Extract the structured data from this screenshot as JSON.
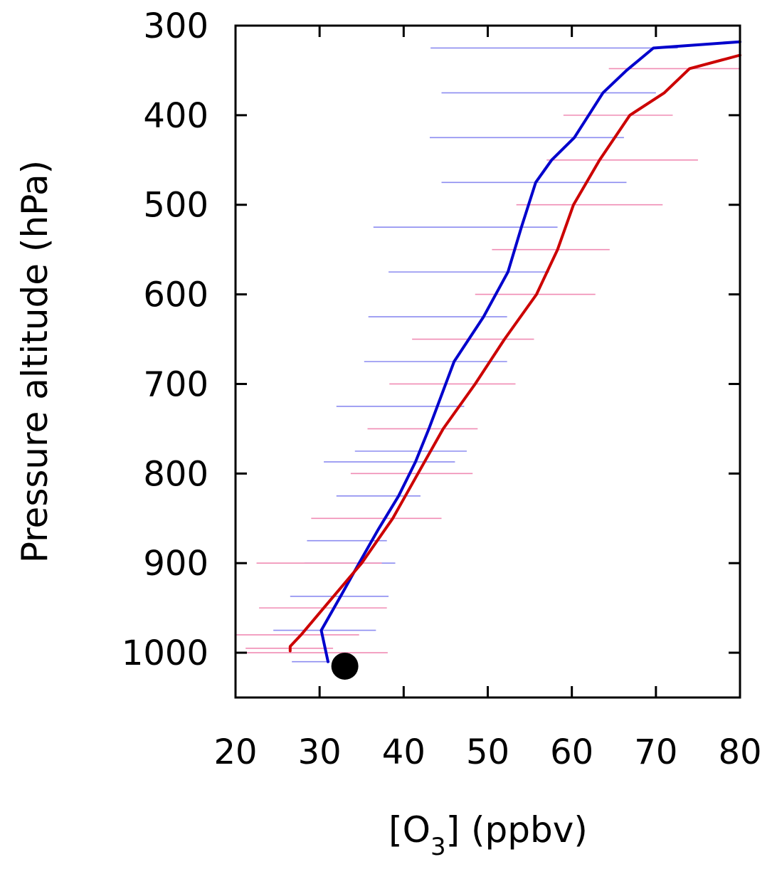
{
  "chart_data": {
    "type": "line",
    "xlabel": "[O3] (ppbv)",
    "xlabel_parts": {
      "pre": "[O",
      "sub": "3",
      "post": "] (ppbv)"
    },
    "ylabel": "Pressure altitude (hPa)",
    "xlim": [
      20,
      80
    ],
    "ylim": [
      1050,
      300
    ],
    "x_ticks": [
      "20",
      "30",
      "40",
      "50",
      "60",
      "70",
      "80"
    ],
    "y_ticks": [
      "300",
      "400",
      "500",
      "600",
      "700",
      "800",
      "900",
      "1000"
    ],
    "y_scale": "linear, inverted",
    "grid": false,
    "legend": "none",
    "series": [
      {
        "color": "#0000cc",
        "points": [
          [
            31,
            1010
          ],
          [
            30.2,
            975
          ],
          [
            32.5,
            937
          ],
          [
            34.7,
            900
          ],
          [
            37,
            862
          ],
          [
            39.4,
            825
          ],
          [
            41.4,
            787
          ],
          [
            43,
            750
          ],
          [
            44,
            725
          ],
          [
            46,
            675
          ],
          [
            49.5,
            625
          ],
          [
            52.4,
            575
          ],
          [
            54,
            525
          ],
          [
            55.7,
            475
          ],
          [
            57.6,
            450
          ],
          [
            60.3,
            425
          ],
          [
            62,
            400
          ],
          [
            63.7,
            375
          ],
          [
            66.5,
            350
          ],
          [
            69.7,
            325
          ],
          [
            80,
            318
          ]
        ],
        "error_bars": [
          [
            26.7,
            1010,
            31.2
          ],
          [
            24.5,
            975,
            36.7
          ],
          [
            26.5,
            937,
            38.2
          ],
          [
            28.2,
            900,
            39
          ],
          [
            28.5,
            875,
            38
          ],
          [
            32,
            825,
            42
          ],
          [
            30.5,
            787,
            46.1
          ],
          [
            34.2,
            775,
            47.5
          ],
          [
            32,
            725,
            47.2
          ],
          [
            35.3,
            675,
            52.3
          ],
          [
            35.8,
            625,
            52.3
          ],
          [
            38.2,
            575,
            57.3
          ],
          [
            36.4,
            525,
            58.3
          ],
          [
            44.5,
            475,
            66.5
          ],
          [
            43.1,
            425,
            66.2
          ],
          [
            44.5,
            375,
            70
          ],
          [
            43.2,
            325,
            72.6
          ]
        ]
      },
      {
        "color": "#cc0000",
        "points": [
          [
            26.5,
            998
          ],
          [
            26.5,
            993
          ],
          [
            27.8,
            980
          ],
          [
            30.5,
            950
          ],
          [
            35,
            900
          ],
          [
            38.7,
            850
          ],
          [
            41.7,
            800
          ],
          [
            44.7,
            750
          ],
          [
            48.5,
            700
          ],
          [
            52,
            650
          ],
          [
            55.8,
            600
          ],
          [
            58.3,
            550
          ],
          [
            60.2,
            500
          ],
          [
            63.3,
            450
          ],
          [
            66.9,
            400
          ],
          [
            71,
            375
          ],
          [
            74,
            348
          ],
          [
            80,
            333
          ]
        ],
        "error_bars": [
          [
            20,
            1000,
            38.1
          ],
          [
            21.2,
            995,
            31.6
          ],
          [
            20,
            980,
            34.7
          ],
          [
            22.8,
            950,
            38
          ],
          [
            22.5,
            900,
            37.4
          ],
          [
            29,
            850,
            44.5
          ],
          [
            33.7,
            800,
            48.2
          ],
          [
            35.7,
            750,
            48.8
          ],
          [
            38.3,
            700,
            53.3
          ],
          [
            41,
            650,
            55.5
          ],
          [
            48.5,
            600,
            62.8
          ],
          [
            50.5,
            550,
            64.5
          ],
          [
            53.4,
            500,
            70.8
          ],
          [
            57,
            450,
            75
          ],
          [
            59,
            400,
            72
          ],
          [
            64.4,
            348,
            81.5
          ]
        ]
      }
    ],
    "markers": [
      {
        "shape": "filled-circle",
        "color": "#000000",
        "x": 33,
        "y": 1015
      }
    ]
  }
}
